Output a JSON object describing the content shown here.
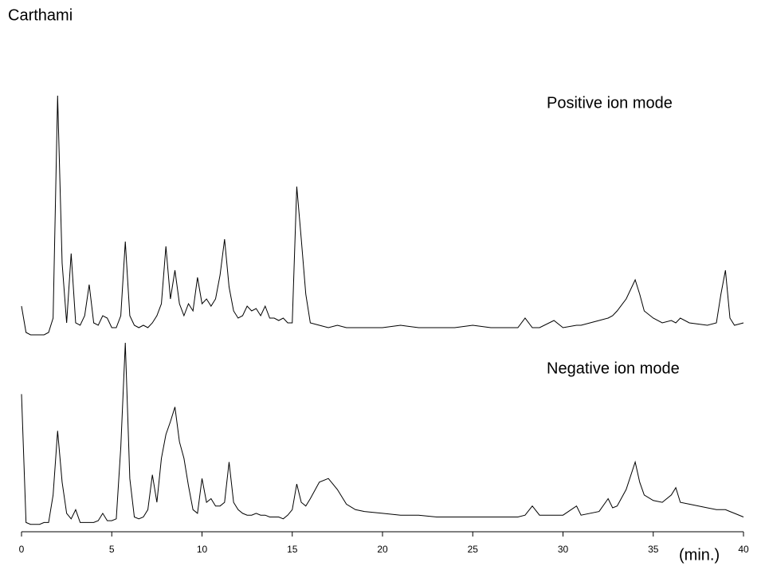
{
  "chart_data": {
    "type": "line",
    "title": "Carthami",
    "xlabel": "(min.)",
    "xlim": [
      0,
      40
    ],
    "xticks": [
      0,
      5,
      10,
      15,
      20,
      25,
      30,
      35,
      40
    ],
    "ylim": [
      0,
      100
    ],
    "x": [
      0,
      0.25,
      0.5,
      0.75,
      1,
      1.25,
      1.5,
      1.75,
      2,
      2.25,
      2.5,
      2.75,
      3,
      3.25,
      3.5,
      3.75,
      4,
      4.25,
      4.5,
      4.75,
      5,
      5.25,
      5.5,
      5.75,
      6,
      6.25,
      6.5,
      6.75,
      7,
      7.25,
      7.5,
      7.75,
      8,
      8.25,
      8.5,
      8.75,
      9,
      9.25,
      9.5,
      9.75,
      10,
      10.25,
      10.5,
      10.75,
      11,
      11.25,
      11.5,
      11.75,
      12,
      12.25,
      12.5,
      12.75,
      13,
      13.25,
      13.5,
      13.75,
      14,
      14.25,
      14.5,
      14.75,
      15,
      15.25,
      15.5,
      15.75,
      16,
      16.5,
      17,
      17.5,
      18,
      18.5,
      19,
      20,
      21,
      22,
      23,
      24,
      25,
      26,
      27,
      27.5,
      27.9,
      28.3,
      28.7,
      29.5,
      30,
      30.75,
      31,
      32,
      32.5,
      32.75,
      33,
      33.5,
      34,
      34.25,
      34.5,
      35,
      35.5,
      36,
      36.25,
      36.5,
      37,
      38,
      38.5,
      38.75,
      39,
      39.25,
      39.5,
      40
    ],
    "series": [
      {
        "name": "Positive ion mode",
        "color": "#000000",
        "values": [
          12,
          1,
          0,
          0,
          0,
          0,
          1,
          7,
          100,
          30,
          5,
          34,
          5,
          4,
          8,
          21,
          5,
          4,
          8,
          7,
          3,
          3,
          8,
          39,
          8,
          4,
          3,
          4,
          3,
          5,
          8,
          13,
          37,
          15,
          27,
          13,
          8,
          13,
          10,
          24,
          13,
          15,
          12,
          15,
          25,
          40,
          20,
          10,
          7,
          8,
          12,
          10,
          11,
          8,
          12,
          7,
          7,
          6,
          7,
          5,
          5,
          62,
          40,
          17,
          5,
          4,
          3,
          4,
          3,
          3,
          3,
          3,
          4,
          3,
          3,
          3,
          4,
          3,
          3,
          3,
          7,
          3,
          3,
          6,
          3,
          4,
          4,
          6,
          7,
          8,
          10,
          15,
          23,
          17,
          10,
          7,
          5,
          6,
          5,
          7,
          5,
          4,
          5,
          17,
          27,
          7,
          4,
          5
        ]
      },
      {
        "name": "Negative ion mode",
        "color": "#000000",
        "values": [
          72,
          2,
          1,
          1,
          1,
          2,
          2,
          17,
          52,
          24,
          7,
          4,
          9,
          2,
          2,
          2,
          2,
          3,
          7,
          3,
          3,
          4,
          43,
          100,
          26,
          5,
          4,
          5,
          9,
          28,
          13,
          37,
          50,
          57,
          65,
          46,
          37,
          22,
          9,
          7,
          26,
          13,
          15,
          11,
          11,
          13,
          35,
          13,
          9,
          7,
          6,
          6,
          7,
          6,
          6,
          5,
          5,
          5,
          4,
          6,
          9,
          23,
          13,
          11,
          15,
          24,
          26,
          20,
          12,
          9,
          8,
          7,
          6,
          6,
          5,
          5,
          5,
          5,
          5,
          5,
          6,
          11,
          6,
          6,
          6,
          11,
          6,
          8,
          15,
          10,
          11,
          20,
          35,
          24,
          17,
          14,
          13,
          17,
          21,
          13,
          12,
          10,
          9,
          9,
          9,
          8,
          7,
          5
        ]
      }
    ]
  }
}
